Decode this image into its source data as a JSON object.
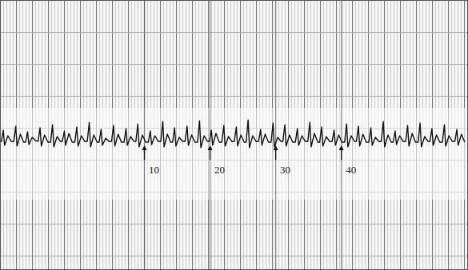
{
  "chart_data": {
    "type": "line",
    "color": "#111111",
    "line_style": "solid",
    "grid": true,
    "tick_labels": "x",
    "xlim": [
      -12,
      59.3
    ],
    "ylim": [
      -16,
      18
    ],
    "xticks": [
      10,
      20,
      30,
      40
    ],
    "x": [
      -11.8,
      -11.5,
      -11.3,
      -10.8,
      -10.3,
      -9.9,
      -9.6,
      -9.4,
      -8.9,
      -8.4,
      -8.1,
      -7.8,
      -7.6,
      -7.1,
      -6.6,
      -6.2,
      -5.9,
      -5.7,
      -5.2,
      -4.7,
      -4.3,
      -4.0,
      -3.8,
      -3.3,
      -2.8,
      -2.5,
      -2.2,
      -2.0,
      -1.5,
      -1.0,
      -0.6,
      -0.3,
      -0.1,
      0.4,
      0.9,
      1.3,
      1.6,
      1.8,
      2.3,
      2.8,
      3.1,
      3.4,
      3.6,
      4.1,
      4.6,
      5.0,
      5.3,
      5.5,
      6.0,
      6.5,
      6.9,
      7.2,
      7.4,
      7.9,
      8.4,
      8.7,
      9.0,
      9.2,
      9.7,
      10.2,
      10.6,
      10.9,
      11.1,
      11.6,
      12.1,
      12.5,
      12.8,
      13.0,
      13.5,
      14.0,
      14.3,
      14.6,
      14.8,
      15.3,
      15.8,
      16.2,
      16.5,
      16.7,
      17.2,
      17.7,
      18.1,
      18.4,
      18.6,
      19.1,
      19.6,
      19.9,
      20.2,
      20.4,
      20.9,
      21.4,
      21.8,
      22.1,
      22.3,
      22.8,
      23.3,
      23.7,
      24.0,
      24.2,
      24.7,
      25.2,
      25.5,
      25.8,
      26.0,
      26.5,
      27.0,
      27.4,
      27.7,
      27.9,
      28.4,
      28.9,
      29.3,
      29.6,
      29.8,
      30.3,
      30.8,
      31.1,
      31.4,
      31.6,
      32.1,
      32.6,
      33.0,
      33.3,
      33.5,
      34.0,
      34.5,
      34.9,
      35.2,
      35.4,
      35.9,
      36.4,
      36.7,
      37.0,
      37.2,
      37.7,
      38.2,
      38.6,
      38.9,
      39.1,
      39.6,
      40.1,
      40.5,
      40.8,
      41.0,
      41.5,
      42.0,
      42.3,
      42.6,
      42.8,
      43.3,
      43.8,
      44.2,
      44.5,
      44.7,
      45.2,
      45.7,
      46.1,
      46.4,
      46.6,
      47.1,
      47.6,
      47.9,
      48.2,
      48.4,
      48.9,
      49.4,
      49.8,
      50.1,
      50.3,
      50.8,
      51.3,
      51.7,
      52.0,
      52.2,
      52.7,
      53.2,
      53.5,
      53.8,
      54.0,
      54.5,
      55.0,
      55.4,
      55.7,
      55.9,
      56.4,
      56.9,
      57.3,
      57.6,
      57.8,
      58.3,
      58.8
    ],
    "values": [
      0.1,
      1.6,
      -0.3,
      0.9,
      0.2,
      0.2,
      2.1,
      -0.4,
      1.1,
      0.1,
      0.1,
      1.4,
      -0.2,
      0.7,
      0.3,
      0.2,
      1.9,
      -0.4,
      1.0,
      0.1,
      0.1,
      2.3,
      -0.5,
      0.8,
      0.2,
      0.2,
      1.5,
      -0.3,
      1.2,
      0.1,
      0.1,
      2.0,
      -0.4,
      0.9,
      0.2,
      0.2,
      2.6,
      -0.5,
      1.0,
      0.1,
      0.1,
      1.7,
      -0.3,
      0.6,
      0.2,
      0.2,
      2.2,
      -0.4,
      1.1,
      0.1,
      0.1,
      1.8,
      -0.3,
      0.8,
      0.2,
      0.2,
      2.4,
      -0.5,
      1.0,
      0.1,
      0.1,
      1.5,
      -0.2,
      0.9,
      0.2,
      0.2,
      2.7,
      -0.5,
      1.1,
      0.1,
      0.1,
      1.9,
      -0.4,
      0.7,
      0.2,
      0.2,
      2.1,
      -0.3,
      1.0,
      0.1,
      0.1,
      2.8,
      -0.6,
      0.9,
      0.2,
      0.2,
      1.6,
      -0.3,
      1.2,
      0.1,
      0.1,
      2.2,
      -0.4,
      0.8,
      0.2,
      0.2,
      2.0,
      -0.4,
      1.0,
      0.1,
      0.1,
      2.9,
      -0.6,
      0.9,
      0.2,
      0.2,
      1.7,
      -0.3,
      1.1,
      0.1,
      0.1,
      2.5,
      -0.5,
      0.7,
      0.2,
      0.2,
      2.3,
      -0.4,
      1.0,
      0.1,
      0.1,
      1.8,
      -0.3,
      0.9,
      0.2,
      0.2,
      2.6,
      -0.5,
      1.2,
      0.1,
      0.1,
      2.0,
      -0.4,
      0.8,
      0.2,
      0.2,
      1.6,
      -0.3,
      1.0,
      0.1,
      0.1,
      2.4,
      -0.5,
      0.9,
      0.2,
      0.2,
      2.1,
      -0.4,
      1.1,
      0.1,
      0.1,
      1.9,
      -0.3,
      0.7,
      0.2,
      0.2,
      2.7,
      -0.5,
      1.0,
      0.1,
      0.1,
      1.5,
      -0.2,
      0.9,
      0.2,
      0.2,
      2.2,
      -0.4,
      1.2,
      0.1,
      0.1,
      2.5,
      -0.5,
      0.8,
      0.2,
      0.2,
      1.8,
      -0.3,
      1.0,
      0.1,
      0.1,
      2.3,
      -0.4,
      0.9,
      0.2,
      0.2,
      1.7,
      -0.3,
      1.1,
      0.1
    ]
  }
}
